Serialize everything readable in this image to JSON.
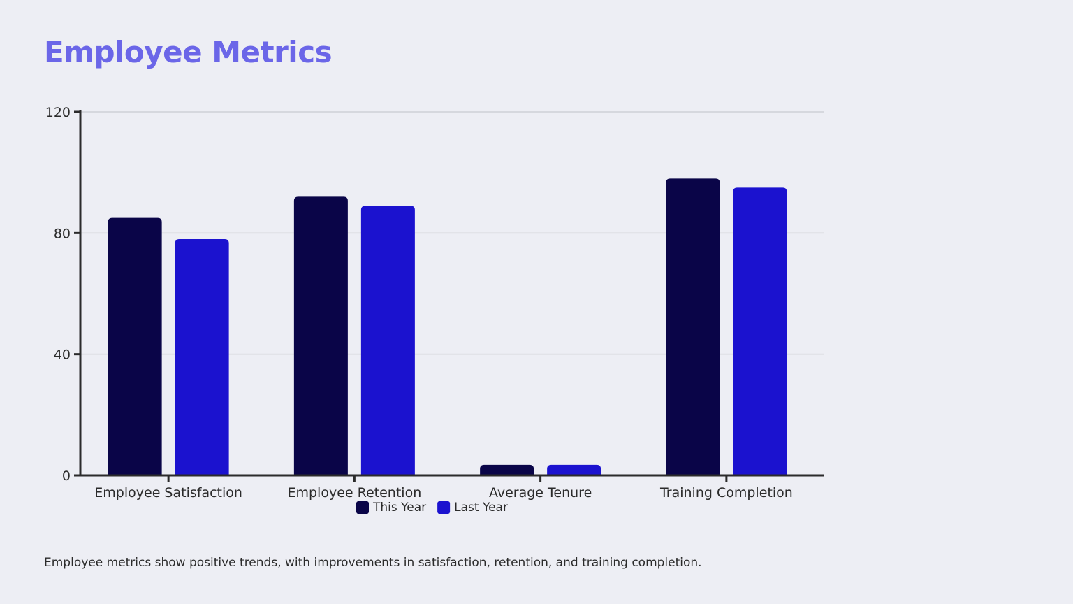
{
  "page": {
    "title": "Employee Metrics",
    "caption": "Employee metrics show positive trends, with improvements in satisfaction, retention, and training completion."
  },
  "chart_data": {
    "type": "bar",
    "title": "",
    "xlabel": "",
    "ylabel": "",
    "categories": [
      "Employee Satisfaction",
      "Employee Retention",
      "Average Tenure",
      "Training Completion"
    ],
    "series": [
      {
        "name": "This Year",
        "color": "#0a0548",
        "values": [
          85,
          92,
          3.5,
          98
        ]
      },
      {
        "name": "Last Year",
        "color": "#1b12cf",
        "values": [
          78,
          89,
          3.5,
          95
        ]
      }
    ],
    "ylim": [
      0,
      120
    ],
    "yticks": [
      0,
      40,
      80,
      120
    ],
    "grid": true,
    "legend": "bottom-center",
    "colors": {
      "grid": "#cfd0d6",
      "axis": "#2b2b2b"
    }
  }
}
